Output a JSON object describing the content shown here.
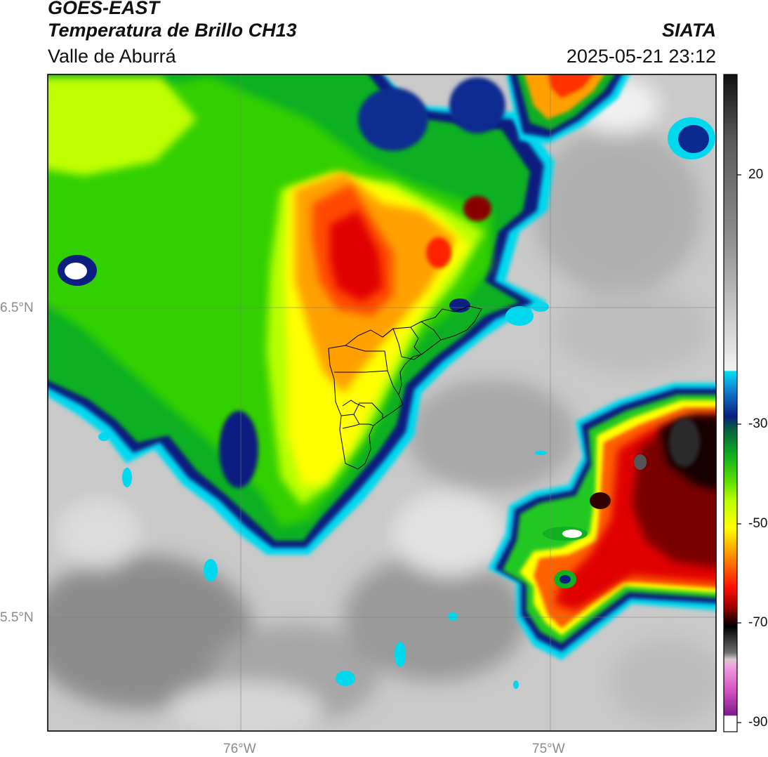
{
  "header": {
    "satellite": "GOES-EAST",
    "product": "Temperatura de Brillo CH13",
    "region": "Valle de Aburrá",
    "organization": "SIATA",
    "datetime": "2025-05-21 23:12"
  },
  "map": {
    "lat_labels": [
      "6.5°N",
      "5.5°N"
    ],
    "lon_labels": [
      "76°W",
      "75°W"
    ],
    "extent": {
      "lon_min": -76.62,
      "lon_max": -74.45,
      "lat_min": 5.13,
      "lat_max": 6.75
    }
  },
  "colorbar": {
    "ticks": [
      "20",
      "-30",
      "-50",
      "-70",
      "-90"
    ],
    "colors": {
      "warm_gray": "#9a9a9a",
      "light_gray": "#e6e6e6",
      "cyan": "#00d8ee",
      "blue": "#1050c0",
      "navy": "#081a70",
      "green": "#20c820",
      "lime": "#b8ff00",
      "yellow": "#ffff00",
      "orange": "#ff9000",
      "red": "#ff1a00",
      "darkred": "#780000",
      "black": "#000000",
      "pink": "#f07ad0",
      "purple": "#7a1a8a"
    }
  }
}
